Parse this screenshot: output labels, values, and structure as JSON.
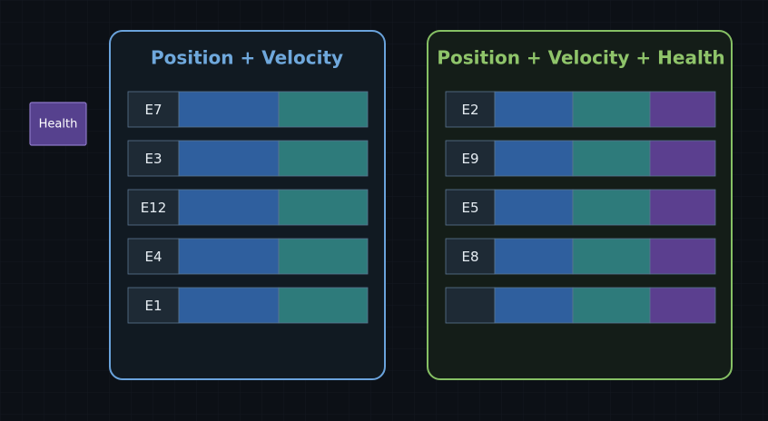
{
  "health_tag": {
    "label": "Health"
  },
  "archetypes": [
    {
      "title": "Position + Velocity",
      "entities": [
        "E7",
        "E3",
        "E12",
        "E4",
        "E1"
      ]
    },
    {
      "title": "Position + Velocity + Health",
      "entities": [
        "E2",
        "E9",
        "E5",
        "E8",
        null
      ]
    }
  ]
}
